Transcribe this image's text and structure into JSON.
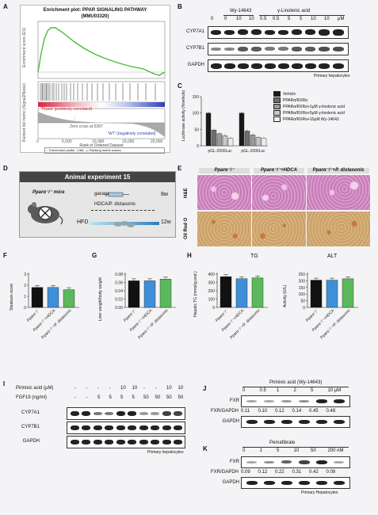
{
  "panel_labels": {
    "A": "A",
    "B": "B",
    "C": "C",
    "D": "D",
    "E": "E",
    "F": "F",
    "G": "G",
    "H": "H",
    "I": "I",
    "J": "J",
    "K": "K"
  },
  "panelA": {
    "title": "Enrichment plot: PPAR SIGNALING PATHWAY",
    "subtitle": "(MMU03320)",
    "ylabel_top": "Enrichment score (ES)",
    "ylabel_bottom": "Ranked list metric (Signal2Noise)",
    "xlabel": "Rank in Ordered Dataset",
    "pos_label": "'Ppara' (positively correlated)",
    "neg_label": "'WT' (negatively correlated)",
    "zero_label": "Zero cross at 5397",
    "legend": [
      "Enrichment profile",
      "Hits",
      "Ranking metric scores"
    ],
    "xticks": [
      "0",
      "5,000",
      "10,000",
      "15,000",
      "20,000"
    ]
  },
  "panelB": {
    "group1": "Wy-14643",
    "group2": "γ-Linolenic acid",
    "concentrations": [
      "0",
      "0",
      "10",
      "10",
      "0.5",
      "0.5",
      "5",
      "5",
      "10",
      "10"
    ],
    "unit": "μM",
    "rows": [
      "CYP7A1",
      "CYP7B1",
      "GAPDH"
    ],
    "caption": "Primary hepatocytes"
  },
  "panelC": {
    "ylabel": "Luciferase activity (%vehicle)",
    "legend": [
      "Vehicle",
      "PPARα/RXRα",
      "PPARα/RXRα+1μM γ-linolenic acid",
      "PPARα/RXRα+5μM γ-linolenic acid",
      "PPARα/RXRα+10μM Wy-14643"
    ],
    "colors": [
      "#1a1a1a",
      "#6e6e6e",
      "#9a9a9a",
      "#c8c8c8",
      "#eeeeee"
    ],
    "yticks": [
      "0",
      "50",
      "100",
      "150"
    ]
  },
  "panelD": {
    "title": "Animal experiment 15",
    "mice": "Pparα⁻/⁻ mice",
    "gavage": "gavage",
    "treatment": "HDCA/P. distasonis",
    "hfd": "HFD",
    "w1": "8w",
    "w2": "12w"
  },
  "panelE": {
    "columns": [
      "Pparα⁻/⁻",
      "Pparα⁻/⁻+HDCA",
      "Pparα⁻/⁻+P. distasonis"
    ],
    "rows": [
      "H&E",
      "Oil Red O"
    ]
  },
  "panelF": {
    "ylabel": "Steatosis score",
    "yticks": [
      "0",
      "1",
      "2",
      "3"
    ]
  },
  "panelG": {
    "ylabel": "Liver weight/body weight",
    "yticks": [
      "0.00",
      "0.02",
      "0.04",
      "0.06",
      "0.08"
    ]
  },
  "panelH": {
    "title1": "TG",
    "title2": "ALT",
    "ylabel1": "Hepatic TG (mmol/g prot.)",
    "ylabel2": "Activity (U/L)",
    "yticks1": [
      "0",
      "100",
      "200",
      "300",
      "400"
    ],
    "yticks2": [
      "0",
      "50",
      "100",
      "150",
      "200",
      "250"
    ]
  },
  "group_labels": [
    "Pparα⁻/⁻",
    "Pparα⁻/⁻+HDCA",
    "Pparα⁻/⁻+P. distasonis"
  ],
  "group_colors": [
    "#111111",
    "#3f8fd8",
    "#5cb85c"
  ],
  "panelI": {
    "row1_label": "Pirinixic acid (μM)",
    "row1_vals": [
      "-",
      "-",
      "-",
      "-",
      "10",
      "10",
      "-",
      "-",
      "10",
      "10"
    ],
    "row2_label": "FGF19 (ng/ml)",
    "row2_vals": [
      "-",
      "-",
      "5",
      "5",
      "5",
      "5",
      "50",
      "50",
      "50",
      "50"
    ],
    "rows": [
      "CYP7A1",
      "CYP7B1",
      "GAPDH"
    ],
    "caption": "Primary hepatocytes"
  },
  "panelJ": {
    "title": "Pirinixic acid (Wy-14643)",
    "conc": [
      "0",
      "0.5",
      "1",
      "2",
      "5",
      "10 μM"
    ],
    "ratio_label": "FXR/GAPDH",
    "ratios": [
      "0.11",
      "0.10",
      "0.12",
      "0.14",
      "0.45",
      "0.48"
    ],
    "rows": [
      "FXR",
      "GAPDH"
    ]
  },
  "panelK": {
    "title": "Pemafibrate",
    "conc": [
      "0",
      "1",
      "5",
      "10",
      "50",
      "200 nM"
    ],
    "ratio_label": "FXR/GAPDH",
    "ratios": [
      "0.09",
      "0.12",
      "0.22",
      "0.31",
      "0.42",
      "0.08"
    ],
    "rows": [
      "FXR",
      "GAPDH"
    ],
    "caption": "Primary Hepatocytes"
  },
  "chart_data": [
    {
      "type": "bar",
      "panel": "C",
      "categories": [
        "pGL-2000Luc",
        "pGL-1000Luc"
      ],
      "ylim": [
        0,
        150
      ],
      "series": [
        {
          "name": "Vehicle",
          "values": [
            100,
            100
          ]
        },
        {
          "name": "PPARα/RXRα",
          "values": [
            48,
            45
          ]
        },
        {
          "name": "PPARα/RXRα+1μM γ-linolenic acid",
          "values": [
            37,
            33
          ]
        },
        {
          "name": "PPARα/RXRα+5μM γ-linolenic acid",
          "values": [
            31,
            26
          ]
        },
        {
          "name": "PPARα/RXRα+10μM Wy-14643",
          "values": [
            23,
            23
          ]
        }
      ]
    },
    {
      "type": "bar",
      "panel": "F",
      "categories": [
        "Pparα⁻/⁻",
        "Pparα⁻/⁻+HDCA",
        "Pparα⁻/⁻+P. distasonis"
      ],
      "values": [
        1.8,
        1.8,
        1.6
      ],
      "ylim": [
        0,
        3
      ]
    },
    {
      "type": "bar",
      "panel": "G",
      "categories": [
        "Pparα⁻/⁻",
        "Pparα⁻/⁻+HDCA",
        "Pparα⁻/⁻+P. distasonis"
      ],
      "values": [
        0.064,
        0.064,
        0.068
      ],
      "ylim": [
        0,
        0.08
      ]
    },
    {
      "type": "bar",
      "panel": "H-TG",
      "title": "TG",
      "categories": [
        "Pparα⁻/⁻",
        "Pparα⁻/⁻+HDCA",
        "Pparα⁻/⁻+P. distasonis"
      ],
      "values": [
        370,
        345,
        355
      ],
      "ylim": [
        0,
        400
      ]
    },
    {
      "type": "bar",
      "panel": "H-ALT",
      "title": "ALT",
      "categories": [
        "Pparα⁻/⁻",
        "Pparα⁻/⁻+HDCA",
        "Pparα⁻/⁻+P. distasonis"
      ],
      "values": [
        205,
        205,
        215
      ],
      "ylim": [
        0,
        250
      ]
    }
  ]
}
